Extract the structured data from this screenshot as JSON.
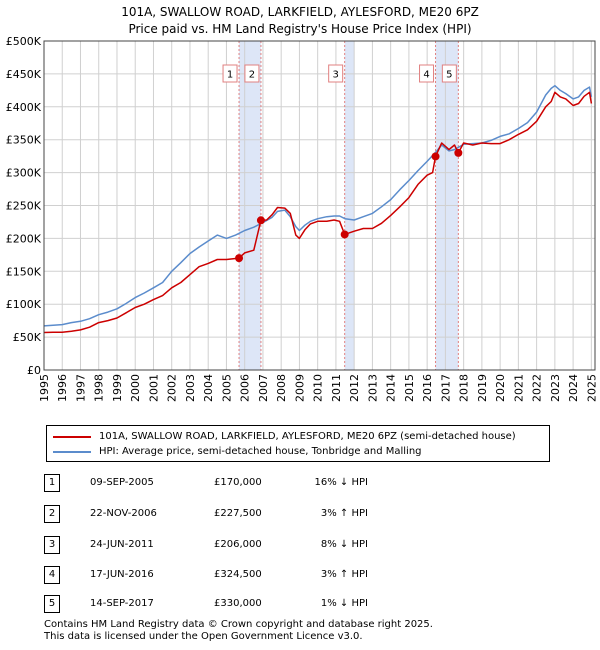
{
  "header": {
    "title": "101A, SWALLOW ROAD, LARKFIELD, AYLESFORD, ME20 6PZ",
    "subtitle": "Price paid vs. HM Land Registry's House Price Index (HPI)"
  },
  "chart_data": {
    "type": "line",
    "title": "101A, SWALLOW ROAD, LARKFIELD, AYLESFORD, ME20 6PZ",
    "subtitle": "Price paid vs. HM Land Registry's House Price Index (HPI)",
    "xlim": [
      1995,
      2025.2
    ],
    "ylim": [
      0,
      500000
    ],
    "x_ticks": [
      "1995",
      "1996",
      "1997",
      "1998",
      "1999",
      "2000",
      "2001",
      "2002",
      "2003",
      "2004",
      "2005",
      "2006",
      "2007",
      "2008",
      "2009",
      "2010",
      "2011",
      "2012",
      "2013",
      "2014",
      "2015",
      "2016",
      "2017",
      "2018",
      "2019",
      "2020",
      "2021",
      "2022",
      "2023",
      "2024",
      "2025"
    ],
    "y_ticks": [
      {
        "value": 0,
        "label": "£0"
      },
      {
        "value": 50000,
        "label": "£50K"
      },
      {
        "value": 100000,
        "label": "£100K"
      },
      {
        "value": 150000,
        "label": "£150K"
      },
      {
        "value": 200000,
        "label": "£200K"
      },
      {
        "value": 250000,
        "label": "£250K"
      },
      {
        "value": 300000,
        "label": "£300K"
      },
      {
        "value": 350000,
        "label": "£350K"
      },
      {
        "value": 400000,
        "label": "£400K"
      },
      {
        "value": 450000,
        "label": "£450K"
      },
      {
        "value": 500000,
        "label": "£500K"
      }
    ],
    "grid": true,
    "legend_position": "below",
    "colors": {
      "price_line": "#cc0000",
      "hpi_line": "#5b8ccc",
      "shade": "#dde6f7",
      "marker_line": "#e08080",
      "grid": "#d0d0d0"
    },
    "series": [
      {
        "name": "101A, SWALLOW ROAD, LARKFIELD, AYLESFORD, ME20 6PZ (semi-detached house)",
        "color": "#cc0000",
        "x": [
          1995.0,
          1995.5,
          1996.0,
          1996.5,
          1997.0,
          1997.5,
          1998.0,
          1998.5,
          1999.0,
          1999.5,
          2000.0,
          2000.5,
          2001.0,
          2001.5,
          2002.0,
          2002.5,
          2003.0,
          2003.5,
          2004.0,
          2004.5,
          2005.0,
          2005.69,
          2006.0,
          2006.5,
          2006.89,
          2007.2,
          2007.5,
          2007.8,
          2008.2,
          2008.5,
          2008.8,
          2009.0,
          2009.3,
          2009.6,
          2010.0,
          2010.5,
          2010.9,
          2011.2,
          2011.48,
          2011.7,
          2012.0,
          2012.5,
          2013.0,
          2013.5,
          2014.0,
          2014.5,
          2015.0,
          2015.5,
          2016.0,
          2016.3,
          2016.46,
          2016.8,
          2017.2,
          2017.5,
          2017.71,
          2018.0,
          2018.5,
          2019.0,
          2019.5,
          2020.0,
          2020.5,
          2021.0,
          2021.5,
          2022.0,
          2022.5,
          2022.8,
          2023.0,
          2023.3,
          2023.6,
          2024.0,
          2024.3,
          2024.6,
          2024.9,
          2025.0
        ],
        "values": [
          57000,
          57500,
          57500,
          59000,
          61000,
          65000,
          72000,
          75000,
          79000,
          87000,
          95000,
          100000,
          107000,
          113000,
          125000,
          133000,
          145000,
          157000,
          162000,
          168000,
          168000,
          170000,
          178000,
          182000,
          227500,
          228000,
          236000,
          247000,
          246000,
          238000,
          205000,
          200000,
          213000,
          222000,
          226000,
          226000,
          228000,
          226000,
          206000,
          208000,
          211000,
          215000,
          215000,
          223000,
          235000,
          248000,
          262000,
          282000,
          296000,
          300000,
          324500,
          345000,
          335000,
          342000,
          330000,
          345000,
          342000,
          345000,
          344000,
          344000,
          350000,
          358000,
          365000,
          378000,
          400000,
          408000,
          422000,
          415000,
          412000,
          402000,
          405000,
          416000,
          422000,
          405000
        ]
      },
      {
        "name": "HPI: Average price, semi-detached house, Tonbridge and Malling",
        "color": "#5b8ccc",
        "x": [
          1995.0,
          1995.5,
          1996.0,
          1996.5,
          1997.0,
          1997.5,
          1998.0,
          1998.5,
          1999.0,
          1999.5,
          2000.0,
          2000.5,
          2001.0,
          2001.5,
          2002.0,
          2002.5,
          2003.0,
          2003.5,
          2004.0,
          2004.5,
          2005.0,
          2005.5,
          2006.0,
          2006.5,
          2007.0,
          2007.5,
          2007.8,
          2008.2,
          2008.5,
          2008.8,
          2009.0,
          2009.3,
          2009.6,
          2010.0,
          2010.5,
          2010.9,
          2011.2,
          2011.5,
          2012.0,
          2012.5,
          2013.0,
          2013.5,
          2014.0,
          2014.5,
          2015.0,
          2015.5,
          2016.0,
          2016.5,
          2016.8,
          2017.2,
          2017.5,
          2018.0,
          2018.5,
          2019.0,
          2019.5,
          2020.0,
          2020.5,
          2021.0,
          2021.5,
          2022.0,
          2022.5,
          2022.8,
          2023.0,
          2023.3,
          2023.6,
          2024.0,
          2024.3,
          2024.6,
          2024.9,
          2025.0
        ],
        "values": [
          67000,
          68000,
          69000,
          72000,
          74000,
          78000,
          84000,
          88000,
          93000,
          101000,
          110000,
          117000,
          125000,
          133000,
          150000,
          163000,
          177000,
          187000,
          196000,
          205000,
          200000,
          205000,
          212000,
          217000,
          224000,
          232000,
          241000,
          243000,
          233000,
          218000,
          212000,
          220000,
          226000,
          230000,
          233000,
          234000,
          234000,
          230000,
          228000,
          233000,
          238000,
          248000,
          259000,
          274000,
          288000,
          303000,
          317000,
          332000,
          342000,
          333000,
          335000,
          343000,
          344000,
          345000,
          349000,
          355000,
          359000,
          367000,
          376000,
          392000,
          418000,
          428000,
          432000,
          425000,
          420000,
          412000,
          415000,
          425000,
          430000,
          415000
        ]
      }
    ],
    "transactions": [
      {
        "id": "1",
        "x": 2005.69,
        "value": 170000,
        "date": "09-SEP-2005",
        "price": "£170,000",
        "hpi": "16% ↓ HPI"
      },
      {
        "id": "2",
        "x": 2006.89,
        "value": 227500,
        "date": "22-NOV-2006",
        "price": "£227,500",
        "hpi": "3% ↑ HPI"
      },
      {
        "id": "3",
        "x": 2011.48,
        "value": 206000,
        "date": "24-JUN-2011",
        "price": "£206,000",
        "hpi": "8% ↓ HPI"
      },
      {
        "id": "4",
        "x": 2016.46,
        "value": 324500,
        "date": "17-JUN-2016",
        "price": "£324,500",
        "hpi": "3% ↑ HPI"
      },
      {
        "id": "5",
        "x": 2017.71,
        "value": 330000,
        "date": "14-SEP-2017",
        "price": "£330,000",
        "hpi": "1% ↓ HPI"
      }
    ],
    "shaded_ranges": [
      [
        2005.69,
        2006.89
      ],
      [
        2011.48,
        2012.0
      ],
      [
        2016.46,
        2017.71
      ]
    ]
  },
  "legend": {
    "price_label": "101A, SWALLOW ROAD, LARKFIELD, AYLESFORD, ME20 6PZ (semi-detached house)",
    "hpi_label": "HPI: Average price, semi-detached house, Tonbridge and Malling"
  },
  "footer": {
    "line1": "Contains HM Land Registry data © Crown copyright and database right 2025.",
    "line2": "This data is licensed under the Open Government Licence v3.0."
  }
}
